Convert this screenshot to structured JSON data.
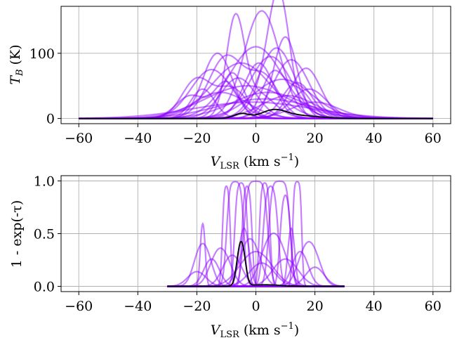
{
  "chart_data": [
    {
      "type": "line",
      "panel": "top",
      "xlabel_main": "V",
      "xlabel_sub": "LSR",
      "xlabel_unit": " (km s",
      "xlabel_sup": "−1",
      "xlabel_close": ")",
      "ylabel_main": "T",
      "ylabel_sub": "B",
      "ylabel_unit": " (K)",
      "xlim": [
        -66,
        66
      ],
      "ylim": [
        -8,
        172
      ],
      "xticks": [
        -60,
        -40,
        -20,
        0,
        20,
        40,
        60
      ],
      "xtick_labels": [
        "−60",
        "−40",
        "−20",
        "0",
        "20",
        "40",
        "60"
      ],
      "yticks": [
        0,
        100
      ],
      "ytick_labels": [
        "0",
        "100"
      ],
      "grid": true,
      "x_range": [
        -60,
        60
      ],
      "sample_color": "#8b00ff",
      "mean_color": "#000000",
      "samples": [
        {
          "peaks": [
            [
              -10,
              95,
              6
            ],
            [
              3,
              60,
              5
            ]
          ]
        },
        {
          "peaks": [
            [
              2,
              165,
              6
            ]
          ]
        },
        {
          "peaks": [
            [
              8,
              160,
              3.5
            ],
            [
              4,
              50,
              5
            ]
          ]
        },
        {
          "peaks": [
            [
              10,
              125,
              4
            ]
          ]
        },
        {
          "peaks": [
            [
              -7,
              140,
              3
            ],
            [
              0,
              40,
              6
            ]
          ]
        },
        {
          "peaks": [
            [
              17,
              77,
              5
            ]
          ]
        },
        {
          "peaks": [
            [
              -13,
              100,
              5
            ]
          ]
        },
        {
          "peaks": [
            [
              -20,
              60,
              5
            ],
            [
              -8,
              45,
              5
            ]
          ]
        },
        {
          "peaks": [
            [
              0,
              110,
              9
            ]
          ]
        },
        {
          "peaks": [
            [
              5,
              95,
              7
            ]
          ]
        },
        {
          "peaks": [
            [
              -5,
              85,
              10
            ]
          ]
        },
        {
          "peaks": [
            [
              12,
              90,
              6
            ]
          ]
        },
        {
          "peaks": [
            [
              -15,
              75,
              7
            ]
          ]
        },
        {
          "peaks": [
            [
              -22,
              35,
              5
            ],
            [
              -10,
              55,
              4
            ]
          ]
        },
        {
          "peaks": [
            [
              6,
              70,
              4
            ],
            [
              15,
              40,
              4
            ]
          ]
        },
        {
          "peaks": [
            [
              -3,
              50,
              14
            ]
          ]
        },
        {
          "peaks": [
            [
              9,
              60,
              10
            ]
          ]
        },
        {
          "peaks": [
            [
              -12,
              40,
              9
            ]
          ]
        },
        {
          "peaks": [
            [
              3,
              30,
              16
            ]
          ]
        },
        {
          "peaks": [
            [
              18,
              45,
              6
            ]
          ]
        },
        {
          "peaks": [
            [
              -8,
              70,
              4
            ]
          ]
        },
        {
          "peaks": [
            [
              1,
              85,
              5
            ]
          ]
        },
        {
          "peaks": [
            [
              14,
              55,
              5
            ]
          ]
        },
        {
          "peaks": [
            [
              -18,
              45,
              4
            ]
          ]
        },
        {
          "peaks": [
            [
              7,
              108,
              6
            ]
          ]
        },
        {
          "peaks": [
            [
              -1,
              25,
              20
            ]
          ]
        },
        {
          "peaks": [
            [
              11,
              35,
              9
            ]
          ]
        },
        {
          "peaks": [
            [
              -6,
              62,
              6
            ]
          ]
        },
        {
          "peaks": [
            [
              4,
              40,
              12
            ]
          ]
        },
        {
          "peaks": [
            [
              20,
              25,
              8
            ]
          ]
        }
      ],
      "mean_curve": {
        "peaks": [
          [
            -5,
            7,
            2.5
          ],
          [
            6,
            10,
            4
          ],
          [
            12,
            5,
            8
          ]
        ]
      }
    },
    {
      "type": "line",
      "panel": "bottom",
      "xlabel_main": "V",
      "xlabel_sub": "LSR",
      "xlabel_unit": " (km s",
      "xlabel_sup": "−1",
      "xlabel_close": ")",
      "ylabel": "1 - exp(-τ)",
      "xlim": [
        -66,
        66
      ],
      "ylim": [
        -0.05,
        1.05
      ],
      "xticks": [
        -60,
        -40,
        -20,
        0,
        20,
        40,
        60
      ],
      "xtick_labels": [
        "−60",
        "−40",
        "−20",
        "0",
        "20",
        "40",
        "60"
      ],
      "yticks": [
        0.0,
        0.5,
        1.0
      ],
      "ytick_labels": [
        "0.0",
        "0.5",
        "1.0"
      ],
      "grid": true,
      "x_range": [
        -30,
        30
      ],
      "sample_color": "#8b00ff",
      "mean_color": "#000000",
      "samples": [
        {
          "peaks": [
            [
              -18,
              0.9,
              0.7
            ]
          ]
        },
        {
          "peaks": [
            [
              -18,
              0.52,
              2.5
            ]
          ]
        },
        {
          "peaks": [
            [
              -15,
              0.3,
              2.5
            ]
          ]
        },
        {
          "peaks": [
            [
              -10,
              3.0,
              0.8
            ]
          ]
        },
        {
          "peaks": [
            [
              -7,
              5.0,
              1.5
            ]
          ]
        },
        {
          "peaks": [
            [
              -5,
              4.0,
              1.2
            ]
          ]
        },
        {
          "peaks": [
            [
              -3,
              3.0,
              1.0
            ]
          ]
        },
        {
          "peaks": [
            [
              0,
              6.0,
              2.0
            ]
          ]
        },
        {
          "peaks": [
            [
              3,
              4.0,
              1.0
            ]
          ]
        },
        {
          "peaks": [
            [
              5,
              3.0,
              1.5
            ]
          ]
        },
        {
          "peaks": [
            [
              8,
              6.0,
              1.8
            ]
          ]
        },
        {
          "peaks": [
            [
              10,
              2.0,
              1.2
            ]
          ]
        },
        {
          "peaks": [
            [
              12,
              0.8,
              1.0
            ]
          ]
        },
        {
          "peaks": [
            [
              14,
              5.0,
              0.8
            ]
          ]
        },
        {
          "peaks": [
            [
              15,
              0.4,
              2.5
            ]
          ]
        },
        {
          "peaks": [
            [
              18,
              0.55,
              3.0
            ]
          ]
        },
        {
          "peaks": [
            [
              -12,
              0.45,
              3.0
            ]
          ]
        },
        {
          "peaks": [
            [
              -8,
              0.35,
              3.0
            ]
          ]
        },
        {
          "peaks": [
            [
              -2,
              0.6,
              3.0
            ]
          ]
        },
        {
          "peaks": [
            [
              6,
              0.7,
              3.5
            ]
          ]
        },
        {
          "peaks": [
            [
              2,
              0.25,
              4.0
            ]
          ]
        },
        {
          "peaks": [
            [
              10,
              0.3,
              4.0
            ]
          ]
        },
        {
          "peaks": [
            [
              -20,
              0.15,
              3.0
            ]
          ]
        },
        {
          "peaks": [
            [
              20,
              0.2,
              3.0
            ]
          ]
        },
        {
          "peaks": [
            [
              -4,
              0.8,
              1.5
            ]
          ]
        },
        {
          "peaks": [
            [
              0,
              0.4,
              5.0
            ]
          ]
        }
      ],
      "mean_curve": {
        "peaks": [
          [
            -5,
            0.55,
            1.2
          ],
          [
            3,
            0.015,
            5
          ]
        ]
      }
    }
  ]
}
